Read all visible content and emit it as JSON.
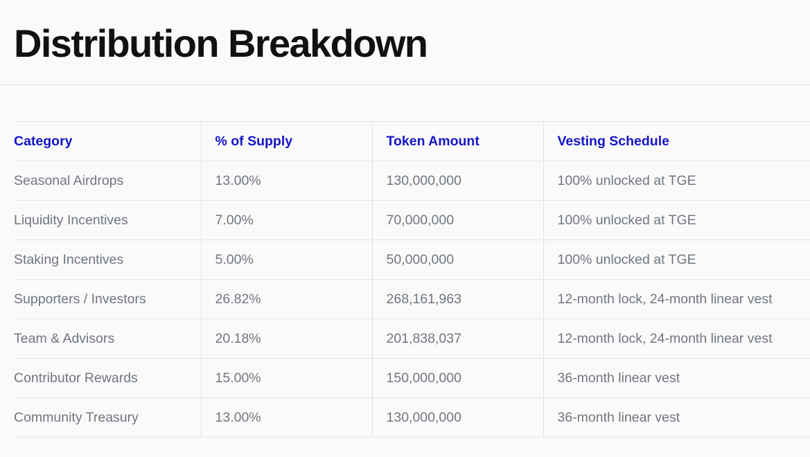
{
  "page": {
    "title": "Distribution Breakdown"
  },
  "colors": {
    "header_text": "#1515c8",
    "cell_text": "#70767f",
    "title_text": "#111111",
    "divider": "#e3e3e3",
    "background": "#fafafa"
  },
  "table": {
    "headers": [
      "Category",
      "% of Supply",
      "Token Amount",
      "Vesting Schedule"
    ],
    "rows": [
      [
        "Seasonal Airdrops",
        "13.00%",
        "130,000,000",
        "100% unlocked at TGE"
      ],
      [
        "Liquidity Incentives",
        "7.00%",
        "70,000,000",
        "100% unlocked at TGE"
      ],
      [
        "Staking Incentives",
        "5.00%",
        "50,000,000",
        "100% unlocked at TGE"
      ],
      [
        "Supporters / Investors",
        "26.82%",
        "268,161,963",
        "12-month lock, 24-month linear vest"
      ],
      [
        "Team & Advisors",
        "20.18%",
        "201,838,037",
        "12-month lock, 24-month linear vest"
      ],
      [
        "Contributor Rewards",
        "15.00%",
        "150,000,000",
        "36-month linear vest"
      ],
      [
        "Community Treasury",
        "13.00%",
        "130,000,000",
        "36-month linear vest"
      ]
    ]
  }
}
